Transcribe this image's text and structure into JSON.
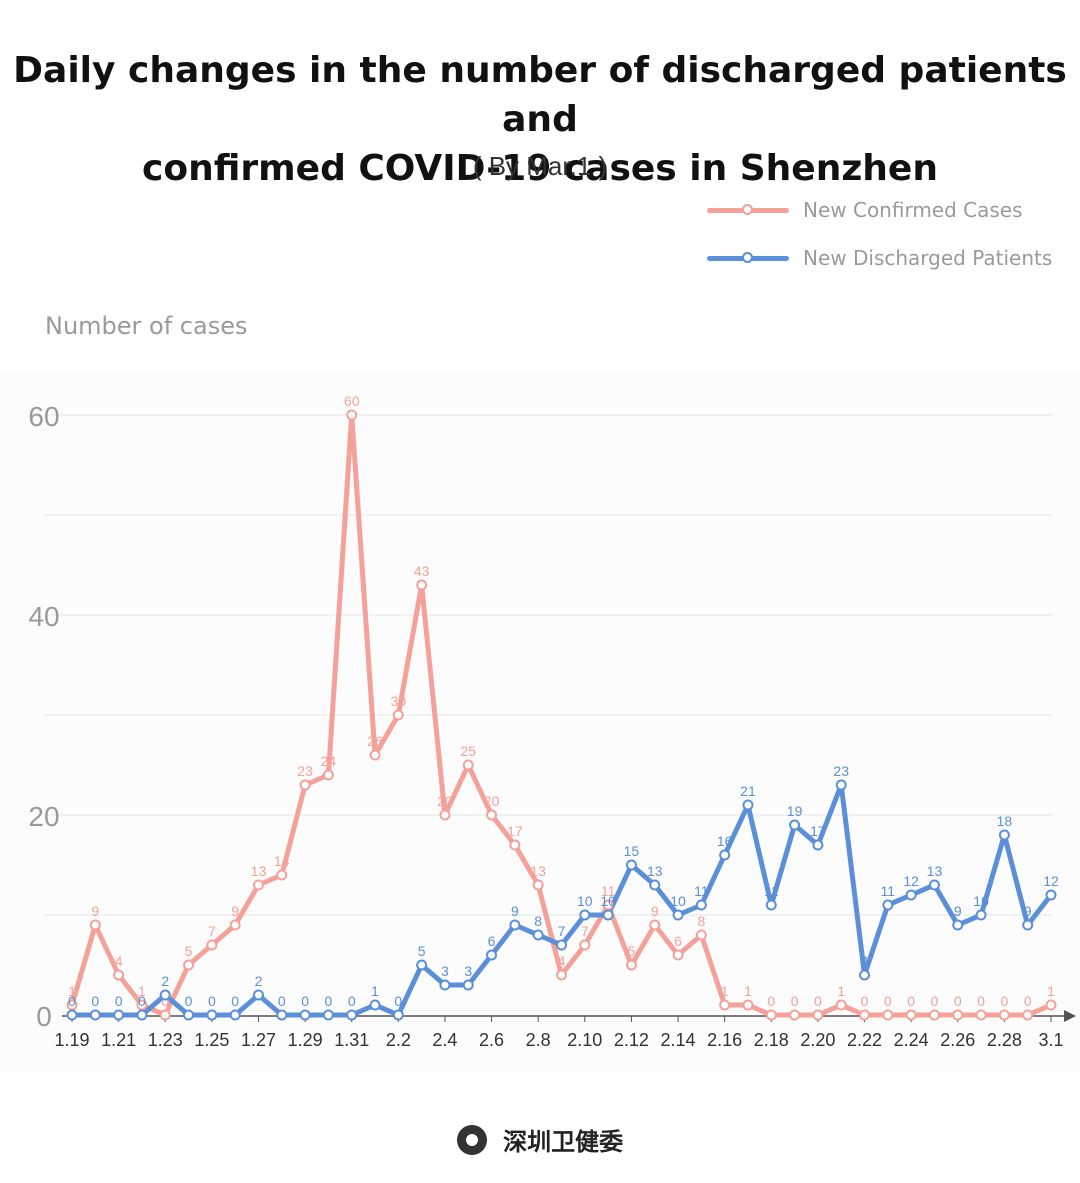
{
  "chart_data": {
    "type": "line",
    "title": "Daily changes in the number of discharged patients and confirmed COVID-19 cases in Shenzhen",
    "title_lines": [
      "Daily changes in the number of discharged patients and",
      "confirmed COVID-19 cases in Shenzhen"
    ],
    "subtitle": "( By Mar.1 )",
    "ylabel": "Number of cases",
    "xlabel": "",
    "ylim": [
      0,
      60
    ],
    "yticks": [
      0,
      20,
      40,
      60
    ],
    "grid": true,
    "legend_position": "top-right",
    "x": [
      "1.19",
      "1.20",
      "1.21",
      "1.22",
      "1.23",
      "1.24",
      "1.25",
      "1.26",
      "1.27",
      "1.28",
      "1.29",
      "1.30",
      "1.31",
      "2.1",
      "2.2",
      "2.3",
      "2.4",
      "2.5",
      "2.6",
      "2.7",
      "2.8",
      "2.9",
      "2.10",
      "2.11",
      "2.12",
      "2.13",
      "2.14",
      "2.15",
      "2.16",
      "2.17",
      "2.18",
      "2.19",
      "2.20",
      "2.21",
      "2.22",
      "2.23",
      "2.24",
      "2.25",
      "2.26",
      "2.27",
      "2.28",
      "2.29",
      "3.1"
    ],
    "xtick_labels": [
      "1.19",
      "1.21",
      "1.23",
      "1.25",
      "1.27",
      "1.29",
      "1.31",
      "2.2",
      "2.4",
      "2.6",
      "2.8",
      "2.10",
      "2.12",
      "2.14",
      "2.16",
      "2.18",
      "2.20",
      "2.22",
      "2.24",
      "2.26",
      "2.28",
      "3.1"
    ],
    "series": [
      {
        "name": "New Confirmed Cases",
        "color": "#f4a19a",
        "values": [
          1,
          9,
          4,
          1,
          0,
          5,
          7,
          9,
          13,
          14,
          23,
          24,
          60,
          26,
          30,
          43,
          20,
          25,
          20,
          17,
          13,
          4,
          7,
          11,
          5,
          9,
          6,
          8,
          1,
          1,
          0,
          0,
          0,
          1,
          0,
          0,
          0,
          0,
          0,
          0,
          0,
          0,
          1
        ]
      },
      {
        "name": "New Discharged Patients",
        "color": "#5b8fd8",
        "values": [
          0,
          0,
          0,
          0,
          2,
          0,
          0,
          0,
          2,
          0,
          0,
          0,
          0,
          1,
          0,
          5,
          3,
          3,
          6,
          9,
          8,
          7,
          10,
          10,
          15,
          13,
          10,
          11,
          16,
          21,
          11,
          19,
          17,
          23,
          4,
          11,
          12,
          13,
          9,
          10,
          18,
          9,
          12
        ]
      }
    ]
  },
  "footer": {
    "logo": "shenzhen-health-commission-logo",
    "text": "深圳卫健委"
  }
}
